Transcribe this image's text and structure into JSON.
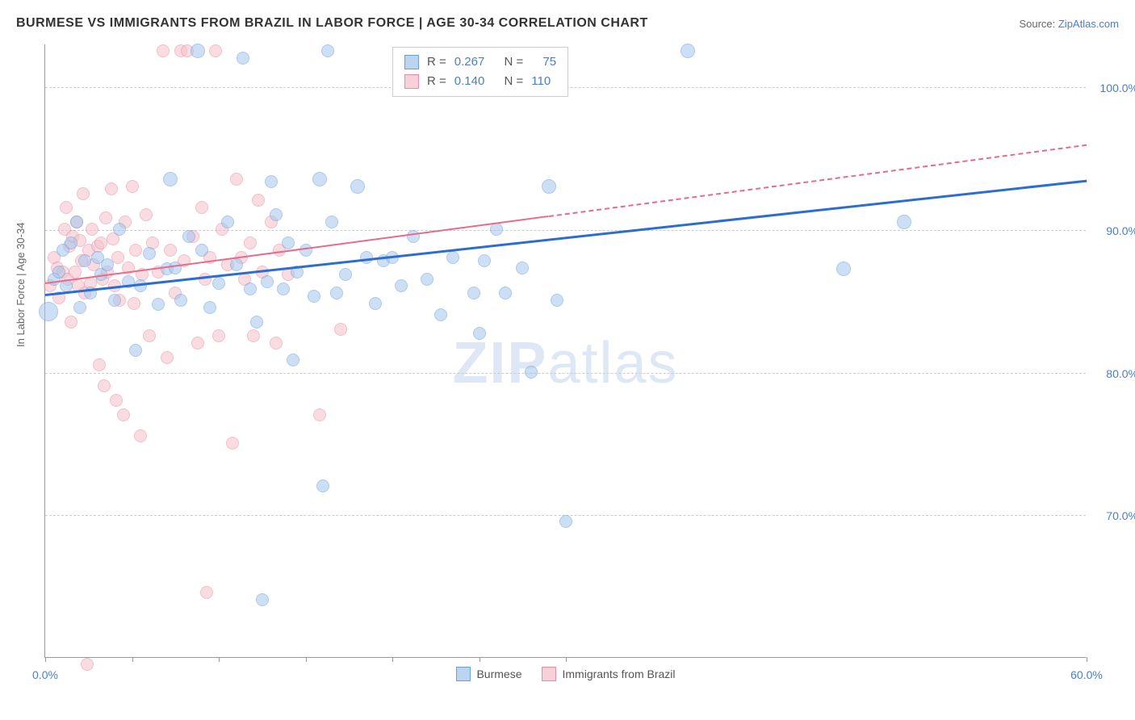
{
  "header": {
    "title": "BURMESE VS IMMIGRANTS FROM BRAZIL IN LABOR FORCE | AGE 30-34 CORRELATION CHART",
    "source_prefix": "Source: ",
    "source_link": "ZipAtlas.com"
  },
  "chart": {
    "type": "scatter",
    "ylabel": "In Labor Force | Age 30-34",
    "watermark_bold": "ZIP",
    "watermark_rest": "atlas",
    "background_color": "#ffffff",
    "grid_color": "#cccccc",
    "axis_color": "#999999",
    "xlim": [
      0,
      60
    ],
    "ylim": [
      60,
      103
    ],
    "xticks": [
      0,
      5,
      10,
      15,
      20,
      25,
      30,
      60
    ],
    "xticklabels": {
      "0": "0.0%",
      "60": "60.0%"
    },
    "yticks": [
      70,
      80,
      90,
      100
    ],
    "yticklabels": {
      "70": "70.0%",
      "80": "80.0%",
      "90": "90.0%",
      "100": "100.0%"
    },
    "tick_label_color": "#4a7ec9",
    "tick_label_fontsize": 14,
    "axis_label_fontsize": 13,
    "axis_label_color": "#666666",
    "marker_radius": 8,
    "marker_opacity": 0.55,
    "marker_stroke_width": 1.5,
    "series": {
      "burmese": {
        "label": "Burmese",
        "fill_color": "#a4c5ed",
        "stroke_color": "#6b9fd8",
        "trend_color": "#2e6dd0",
        "trend_width": 3,
        "trend_start": [
          0,
          85.5
        ],
        "trend_end": [
          60,
          93.5
        ],
        "R": "0.267",
        "N": "75",
        "points": [
          [
            0.2,
            84.2,
            12
          ],
          [
            0.5,
            86.5,
            8
          ],
          [
            0.8,
            87.0,
            8
          ],
          [
            1.0,
            88.5,
            8
          ],
          [
            1.2,
            86.0,
            8
          ],
          [
            1.5,
            89.0,
            8
          ],
          [
            1.8,
            90.5,
            8
          ],
          [
            2.0,
            84.5,
            8
          ],
          [
            2.3,
            87.8,
            8
          ],
          [
            2.6,
            85.5,
            8
          ],
          [
            3.0,
            88.0,
            8
          ],
          [
            3.2,
            86.8,
            8
          ],
          [
            3.6,
            87.5,
            8
          ],
          [
            4.0,
            85.0,
            8
          ],
          [
            4.3,
            90.0,
            8
          ],
          [
            4.8,
            86.3,
            8
          ],
          [
            5.2,
            81.5,
            8
          ],
          [
            5.5,
            86.0,
            8
          ],
          [
            6.0,
            88.3,
            8
          ],
          [
            6.5,
            84.7,
            8
          ],
          [
            7.0,
            87.2,
            8
          ],
          [
            7.2,
            93.5,
            9
          ],
          [
            7.5,
            87.3,
            8
          ],
          [
            7.8,
            85.0,
            8
          ],
          [
            8.3,
            89.5,
            8
          ],
          [
            8.8,
            102.5,
            9
          ],
          [
            9.0,
            88.5,
            8
          ],
          [
            9.5,
            84.5,
            8
          ],
          [
            10.0,
            86.2,
            8
          ],
          [
            10.5,
            90.5,
            8
          ],
          [
            11.0,
            87.5,
            8
          ],
          [
            11.4,
            102.0,
            8
          ],
          [
            11.8,
            85.8,
            8
          ],
          [
            12.2,
            83.5,
            8
          ],
          [
            12.8,
            86.3,
            8
          ],
          [
            13.0,
            93.3,
            8
          ],
          [
            13.3,
            91.0,
            8
          ],
          [
            13.7,
            85.8,
            8
          ],
          [
            14.0,
            89.0,
            8
          ],
          [
            14.5,
            87.0,
            8
          ],
          [
            15.0,
            88.5,
            8
          ],
          [
            15.5,
            85.3,
            8
          ],
          [
            15.8,
            93.5,
            9
          ],
          [
            16.0,
            72.0,
            8
          ],
          [
            16.3,
            102.5,
            8
          ],
          [
            16.5,
            90.5,
            8
          ],
          [
            16.8,
            85.5,
            8
          ],
          [
            17.3,
            86.8,
            8
          ],
          [
            18.0,
            93.0,
            9
          ],
          [
            18.5,
            88.0,
            8
          ],
          [
            19.0,
            84.8,
            8
          ],
          [
            19.5,
            87.8,
            8
          ],
          [
            20.0,
            88.0,
            8
          ],
          [
            20.5,
            86.0,
            8
          ],
          [
            21.2,
            89.5,
            8
          ],
          [
            22.0,
            86.5,
            8
          ],
          [
            22.8,
            84.0,
            8
          ],
          [
            23.5,
            88.0,
            8
          ],
          [
            24.7,
            85.5,
            8
          ],
          [
            25.0,
            82.7,
            8
          ],
          [
            25.3,
            87.8,
            8
          ],
          [
            26.0,
            90.0,
            8
          ],
          [
            26.5,
            85.5,
            8
          ],
          [
            27.5,
            87.3,
            8
          ],
          [
            28.0,
            80.0,
            8
          ],
          [
            29.0,
            93.0,
            9
          ],
          [
            29.5,
            85.0,
            8
          ],
          [
            30.0,
            69.5,
            8
          ],
          [
            37.0,
            102.5,
            9
          ],
          [
            46.0,
            87.2,
            9
          ],
          [
            49.5,
            90.5,
            9
          ],
          [
            12.5,
            64.0,
            8
          ],
          [
            14.3,
            80.8,
            8
          ]
        ]
      },
      "brazil": {
        "label": "Immigrants from Brazil",
        "fill_color": "#f5c0cc",
        "stroke_color": "#e68ba3",
        "trend_color": "#e76b8a",
        "trend_width": 2,
        "trend_solid_start": [
          0,
          86.3
        ],
        "trend_solid_end": [
          29,
          91.0
        ],
        "trend_dash_end": [
          60,
          96.0
        ],
        "R": "0.140",
        "N": "110",
        "points": [
          [
            0.3,
            86.0,
            8
          ],
          [
            0.5,
            88.0,
            8
          ],
          [
            0.7,
            87.3,
            8
          ],
          [
            0.8,
            85.2,
            8
          ],
          [
            1.0,
            87.0,
            8
          ],
          [
            1.1,
            90.0,
            8
          ],
          [
            1.2,
            91.5,
            8
          ],
          [
            1.3,
            86.5,
            8
          ],
          [
            1.4,
            88.8,
            8
          ],
          [
            1.5,
            83.5,
            8
          ],
          [
            1.6,
            89.5,
            8
          ],
          [
            1.7,
            87.0,
            8
          ],
          [
            1.8,
            90.5,
            8
          ],
          [
            1.9,
            86.0,
            8
          ],
          [
            2.0,
            89.2,
            8
          ],
          [
            2.1,
            87.8,
            8
          ],
          [
            2.2,
            92.5,
            8
          ],
          [
            2.3,
            85.5,
            8
          ],
          [
            2.4,
            59.5,
            8
          ],
          [
            2.5,
            88.5,
            8
          ],
          [
            2.6,
            86.2,
            8
          ],
          [
            2.7,
            90.0,
            8
          ],
          [
            2.8,
            87.5,
            8
          ],
          [
            3.0,
            88.8,
            8
          ],
          [
            3.1,
            80.5,
            8
          ],
          [
            3.2,
            89.0,
            8
          ],
          [
            3.3,
            86.5,
            8
          ],
          [
            3.4,
            79.0,
            8
          ],
          [
            3.5,
            90.8,
            8
          ],
          [
            3.6,
            87.0,
            8
          ],
          [
            3.8,
            92.8,
            8
          ],
          [
            3.9,
            89.3,
            8
          ],
          [
            4.0,
            86.0,
            8
          ],
          [
            4.1,
            78.0,
            8
          ],
          [
            4.2,
            88.0,
            8
          ],
          [
            4.3,
            85.0,
            8
          ],
          [
            4.5,
            77.0,
            8
          ],
          [
            4.6,
            90.5,
            8
          ],
          [
            4.8,
            87.3,
            8
          ],
          [
            5.0,
            93.0,
            8
          ],
          [
            5.1,
            84.8,
            8
          ],
          [
            5.2,
            88.5,
            8
          ],
          [
            5.5,
            75.5,
            8
          ],
          [
            5.6,
            86.8,
            8
          ],
          [
            5.8,
            91.0,
            8
          ],
          [
            6.0,
            82.5,
            8
          ],
          [
            6.2,
            89.0,
            8
          ],
          [
            6.5,
            87.0,
            8
          ],
          [
            6.8,
            102.5,
            8
          ],
          [
            7.0,
            81.0,
            8
          ],
          [
            7.2,
            88.5,
            8
          ],
          [
            7.5,
            85.5,
            8
          ],
          [
            7.8,
            102.5,
            8
          ],
          [
            8.0,
            87.8,
            8
          ],
          [
            8.2,
            102.5,
            8
          ],
          [
            8.5,
            89.5,
            8
          ],
          [
            8.8,
            82.0,
            8
          ],
          [
            9.0,
            91.5,
            8
          ],
          [
            9.2,
            86.5,
            8
          ],
          [
            9.5,
            88.0,
            8
          ],
          [
            9.8,
            102.5,
            8
          ],
          [
            10.0,
            82.5,
            8
          ],
          [
            10.2,
            90.0,
            8
          ],
          [
            10.5,
            87.5,
            8
          ],
          [
            10.8,
            75.0,
            8
          ],
          [
            11.0,
            93.5,
            8
          ],
          [
            11.3,
            88.0,
            8
          ],
          [
            11.5,
            86.5,
            8
          ],
          [
            11.8,
            89.0,
            8
          ],
          [
            12.0,
            82.5,
            8
          ],
          [
            12.3,
            92.0,
            8
          ],
          [
            12.5,
            87.0,
            8
          ],
          [
            13.0,
            90.5,
            8
          ],
          [
            13.3,
            82.0,
            8
          ],
          [
            13.5,
            88.5,
            8
          ],
          [
            14.0,
            86.8,
            8
          ],
          [
            15.8,
            77.0,
            8
          ],
          [
            17.0,
            83.0,
            8
          ],
          [
            9.3,
            64.5,
            8
          ]
        ]
      }
    },
    "stats_box": {
      "R_label": "R = ",
      "N_label": "N = "
    },
    "legend": {
      "burmese_swatch_fill": "#bcd4f0",
      "burmese_swatch_border": "#6b9fd8",
      "brazil_swatch_fill": "#f8d0da",
      "brazil_swatch_border": "#e68ba3"
    }
  }
}
